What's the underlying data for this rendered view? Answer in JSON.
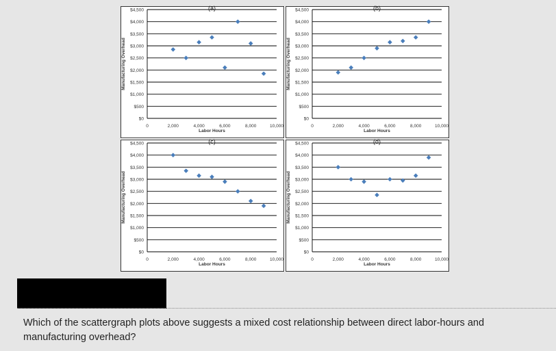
{
  "question": {
    "text": "Which of the scattergraph plots above suggests a mixed cost relationship between direct labor-hours and manufacturing overhead?"
  },
  "colors": {
    "marker": "#4a7ebb",
    "gridline": "#000000",
    "frame": "#333333"
  },
  "chart_data": [
    {
      "type": "scatter",
      "title": "(a)",
      "xlabel": "Labor Hours",
      "ylabel": "Manufacturing Overhead",
      "xlim": [
        0,
        10000
      ],
      "ylim": [
        0,
        4500
      ],
      "x_ticks": [
        "0",
        "2,000",
        "4,000",
        "6,000",
        "8,000",
        "10,000"
      ],
      "y_ticks": [
        "$0",
        "$500",
        "$1,000",
        "$1,500",
        "$2,000",
        "$2,500",
        "$3,000",
        "$3,500",
        "$4,000",
        "$4,500"
      ],
      "grid": "horizontal",
      "points": [
        [
          2000,
          2850
        ],
        [
          3000,
          2500
        ],
        [
          4000,
          3150
        ],
        [
          5000,
          3350
        ],
        [
          6000,
          2100
        ],
        [
          7000,
          4000
        ],
        [
          8000,
          3100
        ],
        [
          9000,
          1850
        ]
      ]
    },
    {
      "type": "scatter",
      "title": "(b)",
      "xlabel": "Labor Hours",
      "ylabel": "Manufacturing Overhead",
      "xlim": [
        0,
        10000
      ],
      "ylim": [
        0,
        4500
      ],
      "x_ticks": [
        "0",
        "2,000",
        "4,000",
        "6,000",
        "8,000",
        "10,000"
      ],
      "y_ticks": [
        "$0",
        "$500",
        "$1,000",
        "$1,500",
        "$2,000",
        "$2,500",
        "$3,000",
        "$3,500",
        "$4,000",
        "$4,500"
      ],
      "grid": "horizontal",
      "points": [
        [
          2000,
          1900
        ],
        [
          3000,
          2100
        ],
        [
          4000,
          2500
        ],
        [
          5000,
          2900
        ],
        [
          6000,
          3150
        ],
        [
          7000,
          3200
        ],
        [
          8000,
          3350
        ],
        [
          9000,
          4000
        ]
      ]
    },
    {
      "type": "scatter",
      "title": "(c)",
      "xlabel": "Labor Hours",
      "ylabel": "Manufacturing Overhead",
      "xlim": [
        0,
        10000
      ],
      "ylim": [
        0,
        4500
      ],
      "x_ticks": [
        "0",
        "2,000",
        "4,000",
        "6,000",
        "8,000",
        "10,000"
      ],
      "y_ticks": [
        "$0",
        "$500",
        "$1,000",
        "$1,500",
        "$2,000",
        "$2,500",
        "$3,000",
        "$3,500",
        "$4,000",
        "$4,500"
      ],
      "grid": "horizontal",
      "points": [
        [
          2000,
          4000
        ],
        [
          3000,
          3350
        ],
        [
          4000,
          3150
        ],
        [
          5000,
          3100
        ],
        [
          6000,
          2900
        ],
        [
          7000,
          2500
        ],
        [
          8000,
          2100
        ],
        [
          9000,
          1900
        ]
      ]
    },
    {
      "type": "scatter",
      "title": "(d)",
      "xlabel": "Labor Hours",
      "ylabel": "Manufacturing Overhead",
      "xlim": [
        0,
        10000
      ],
      "ylim": [
        0,
        4500
      ],
      "x_ticks": [
        "0",
        "2,000",
        "4,000",
        "6,000",
        "8,000",
        "10,000"
      ],
      "y_ticks": [
        "$0",
        "$500",
        "$1,000",
        "$1,500",
        "$2,000",
        "$2,500",
        "$3,000",
        "$3,500",
        "$4,000",
        "$4,500"
      ],
      "grid": "horizontal",
      "points": [
        [
          2000,
          3500
        ],
        [
          3000,
          3000
        ],
        [
          4000,
          2900
        ],
        [
          5000,
          2350
        ],
        [
          6000,
          3000
        ],
        [
          7000,
          2950
        ],
        [
          8000,
          3150
        ],
        [
          9000,
          3900
        ]
      ]
    }
  ]
}
